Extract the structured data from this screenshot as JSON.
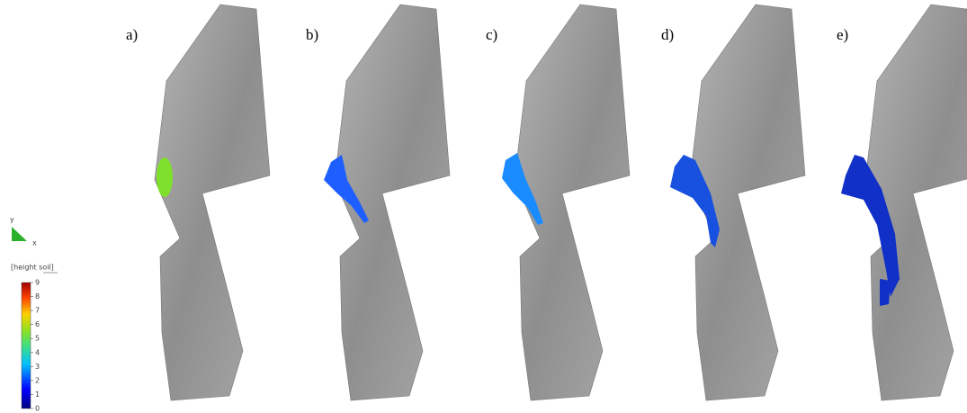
{
  "panels": [
    {
      "label": "a)"
    },
    {
      "label": "b)"
    },
    {
      "label": "c)"
    },
    {
      "label": "d)"
    },
    {
      "label": "e)"
    }
  ],
  "axes": {
    "y": "y",
    "x": "x"
  },
  "legend": {
    "title": "[height soil]",
    "ticks": [
      0,
      1,
      2,
      3,
      4,
      5,
      6,
      7,
      8,
      9
    ]
  }
}
